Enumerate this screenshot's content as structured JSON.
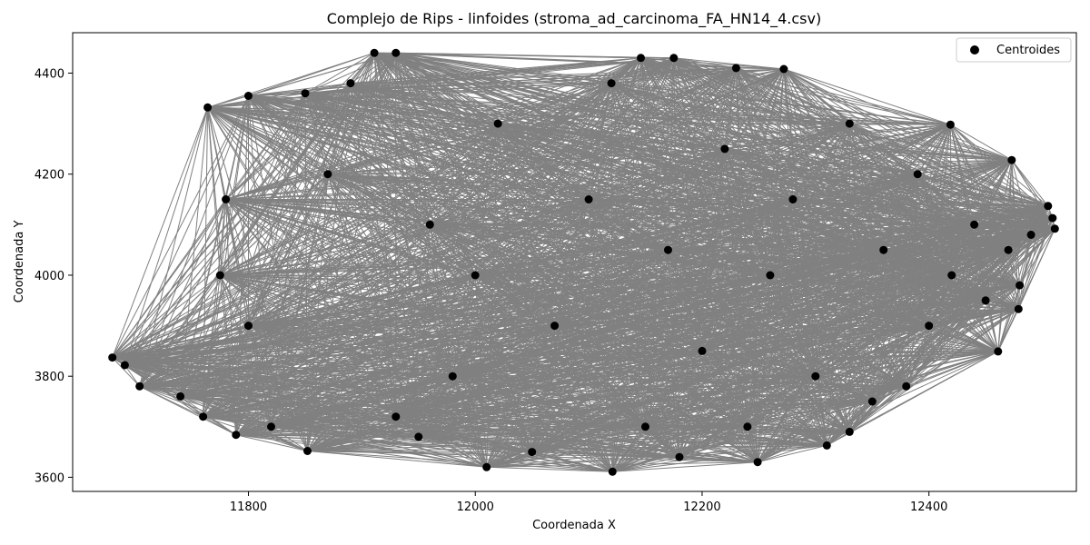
{
  "chart_data": {
    "type": "scatter",
    "title": "Complejo de Rips - linfoides (stroma_ad_carcinoma_FA_HN14_4.csv)",
    "xlabel": "Coordenada X",
    "ylabel": "Coordenada Y",
    "xlim": [
      11645,
      12530
    ],
    "ylim": [
      3572,
      4480
    ],
    "xticks": [
      11800,
      12000,
      12200,
      12400
    ],
    "yticks": [
      3600,
      3800,
      4000,
      4200,
      4400
    ],
    "xtick_labels": [
      "11800",
      "12000",
      "12200",
      "12400"
    ],
    "ytick_labels": [
      "3600",
      "3800",
      "4000",
      "4200",
      "4400"
    ],
    "grid": false,
    "legend": {
      "position": "top-right",
      "entries": [
        "Centroides"
      ]
    },
    "colors": {
      "points": "#000000",
      "edges": "#808080"
    },
    "series": [
      {
        "name": "Centroides",
        "points": [
          [
            11680,
            3837
          ],
          [
            11691,
            3822
          ],
          [
            11704,
            3780
          ],
          [
            11764,
            4332
          ],
          [
            11789,
            3684
          ],
          [
            11800,
            4355
          ],
          [
            11852,
            3652
          ],
          [
            11911,
            4440
          ],
          [
            11930,
            4440
          ],
          [
            12121,
            3611
          ],
          [
            12146,
            4430
          ],
          [
            12175,
            4430
          ],
          [
            12249,
            3630
          ],
          [
            12272,
            4408
          ],
          [
            12310,
            3663
          ],
          [
            12419,
            4298
          ],
          [
            12461,
            3849
          ],
          [
            12473,
            4228
          ],
          [
            12479,
            3933
          ],
          [
            12505,
            4137
          ],
          [
            12509,
            4113
          ],
          [
            12511,
            4092
          ],
          [
            11760,
            3720
          ],
          [
            11740,
            3760
          ],
          [
            11780,
            4150
          ],
          [
            11775,
            4000
          ],
          [
            11800,
            3900
          ],
          [
            11820,
            3700
          ],
          [
            11870,
            4200
          ],
          [
            11890,
            4380
          ],
          [
            11950,
            3680
          ],
          [
            11960,
            4100
          ],
          [
            11980,
            3800
          ],
          [
            12000,
            4000
          ],
          [
            12020,
            4300
          ],
          [
            12050,
            3650
          ],
          [
            12070,
            3900
          ],
          [
            12100,
            4150
          ],
          [
            12120,
            4380
          ],
          [
            12150,
            3700
          ],
          [
            12170,
            4050
          ],
          [
            12200,
            3850
          ],
          [
            12220,
            4250
          ],
          [
            12240,
            3700
          ],
          [
            12260,
            4000
          ],
          [
            12280,
            4150
          ],
          [
            12300,
            3800
          ],
          [
            12330,
            4300
          ],
          [
            12350,
            3750
          ],
          [
            12360,
            4050
          ],
          [
            12380,
            3780
          ],
          [
            12390,
            4200
          ],
          [
            12400,
            3900
          ],
          [
            12420,
            4000
          ],
          [
            12440,
            4100
          ],
          [
            12450,
            3950
          ],
          [
            12470,
            4050
          ],
          [
            12480,
            3980
          ],
          [
            12490,
            4080
          ],
          [
            12010,
            3620
          ],
          [
            11930,
            3720
          ],
          [
            12180,
            3640
          ],
          [
            12230,
            4410
          ],
          [
            12330,
            3690
          ],
          [
            11850,
            4360
          ]
        ],
        "edges_all_pairs": true
      }
    ]
  }
}
